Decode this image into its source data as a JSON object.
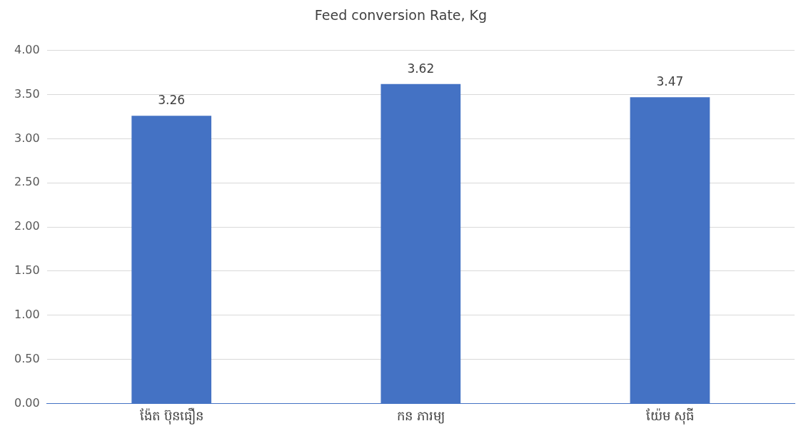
{
  "chart_data": {
    "type": "bar",
    "title": "Feed conversion Rate, Kg",
    "categories": [
      "ង៉ែត ប៊ុនធឿន",
      "កន ភារម្យ",
      "យ៉ែម សុធី"
    ],
    "values": [
      3.26,
      3.62,
      3.47
    ],
    "color": "#4472c4",
    "data_labels": true,
    "ylim": [
      0,
      4
    ],
    "yticks": [
      {
        "value": 0,
        "label": "0.00"
      },
      {
        "value": 0.5,
        "label": "0.50"
      },
      {
        "value": 1,
        "label": "1.00"
      },
      {
        "value": 1.5,
        "label": "1.50"
      },
      {
        "value": 2,
        "label": "2.00"
      },
      {
        "value": 2.5,
        "label": "2.50"
      },
      {
        "value": 3,
        "label": "3.00"
      },
      {
        "value": 3.5,
        "label": "3.50"
      },
      {
        "value": 4,
        "label": "4.00"
      }
    ],
    "grid": "y"
  }
}
